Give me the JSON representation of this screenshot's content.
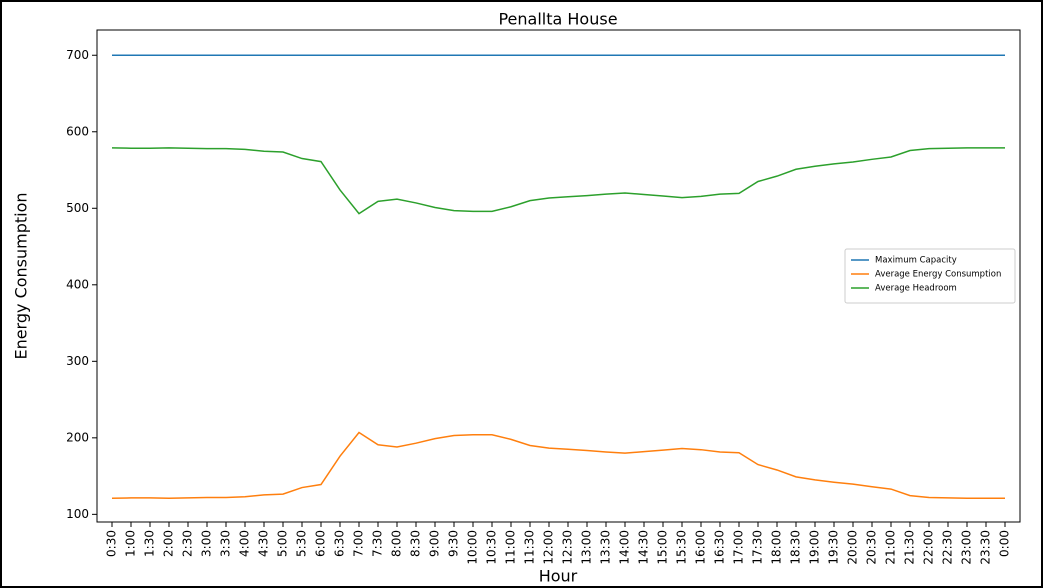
{
  "chart_data": {
    "type": "line",
    "title": "Penallta House",
    "xlabel": "Hour",
    "ylabel": "Energy Consumption",
    "categories": [
      "0:30",
      "1:00",
      "1:30",
      "2:00",
      "2:30",
      "3:00",
      "3:30",
      "4:00",
      "4:30",
      "5:00",
      "5:30",
      "6:00",
      "6:30",
      "7:00",
      "7:30",
      "8:00",
      "8:30",
      "9:00",
      "9:30",
      "10:00",
      "10:30",
      "11:00",
      "11:30",
      "12:00",
      "12:30",
      "13:00",
      "13:30",
      "14:00",
      "14:30",
      "15:00",
      "15:30",
      "16:00",
      "16:30",
      "17:00",
      "17:30",
      "18:00",
      "18:30",
      "19:00",
      "19:30",
      "20:00",
      "20:30",
      "21:00",
      "21:30",
      "22:00",
      "22:30",
      "23:00",
      "23:30",
      "0:00"
    ],
    "series": [
      {
        "name": "Maximum Capacity",
        "color": "#1f77b4",
        "values": [
          700,
          700,
          700,
          700,
          700,
          700,
          700,
          700,
          700,
          700,
          700,
          700,
          700,
          700,
          700,
          700,
          700,
          700,
          700,
          700,
          700,
          700,
          700,
          700,
          700,
          700,
          700,
          700,
          700,
          700,
          700,
          700,
          700,
          700,
          700,
          700,
          700,
          700,
          700,
          700,
          700,
          700,
          700,
          700,
          700,
          700,
          700,
          700
        ]
      },
      {
        "name": "Average Energy Consumption",
        "color": "#ff7f0e",
        "values": [
          121,
          121.5,
          121.5,
          121,
          121.5,
          122,
          122,
          123,
          125.5,
          126.5,
          135,
          139,
          176,
          207,
          191,
          188,
          193,
          199,
          203,
          204,
          204,
          198,
          190,
          186.5,
          185,
          183.5,
          181.5,
          180,
          182,
          184,
          186,
          184.5,
          181.5,
          180.5,
          165,
          158,
          149,
          145,
          142,
          139.5,
          136,
          133,
          124.5,
          122,
          121.5,
          121,
          121,
          121
        ]
      },
      {
        "name": "Average Headroom",
        "color": "#2ca02c",
        "values": [
          579,
          578.5,
          578.5,
          579,
          578.5,
          578,
          578,
          577,
          574.5,
          573.5,
          565,
          561,
          524,
          493,
          509,
          512,
          507,
          501,
          497,
          496,
          496,
          502,
          510,
          513.5,
          515,
          516.5,
          518.5,
          520,
          518,
          516,
          514,
          515.5,
          518.5,
          519.5,
          535,
          542,
          551,
          555,
          558,
          560.5,
          564,
          567,
          575.5,
          578,
          578.5,
          579,
          579,
          579
        ]
      }
    ],
    "ylim": [
      90,
      733
    ],
    "yticks": [
      100,
      200,
      300,
      400,
      500,
      600,
      700
    ],
    "legend": "center right"
  }
}
